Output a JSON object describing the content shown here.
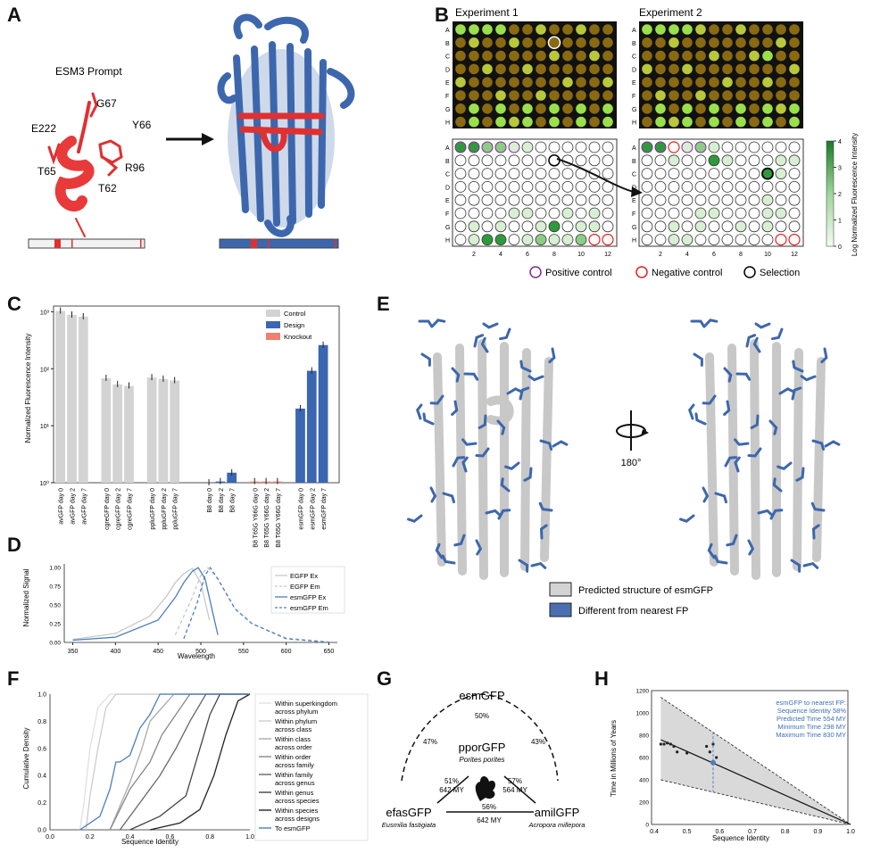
{
  "labels": {
    "A": "A",
    "B": "B",
    "C": "C",
    "D": "D",
    "E": "E",
    "F": "F",
    "G": "G",
    "H": "H"
  },
  "panelA": {
    "title": "ESM3 Prompt",
    "residues": [
      "G67",
      "E222",
      "Y66",
      "T65",
      "R96",
      "T62"
    ]
  },
  "panelB": {
    "exp1": "Experiment 1",
    "exp2": "Experiment 2",
    "rows": [
      "A",
      "B",
      "C",
      "D",
      "E",
      "F",
      "G",
      "H"
    ],
    "cols": [
      "2",
      "4",
      "6",
      "8",
      "10",
      "12"
    ],
    "colorbar_label": "Log Normalized Fluorescence Intensity",
    "colorbar_ticks": [
      "0",
      "1",
      "2",
      "3",
      "4"
    ],
    "legend": [
      "Positive control",
      "Negative control",
      "Selection"
    ],
    "colors": {
      "positive": "#7b2d8e",
      "negative": "#e02020",
      "selection": "#000000"
    }
  },
  "panelC": {
    "chart_data": {
      "type": "bar",
      "ylabel": "Normalized Fluorescence Intensity",
      "yscale": "log",
      "ylim": [
        1,
        1000
      ],
      "yticks": [
        "10⁰",
        "10¹",
        "10²",
        "10³"
      ],
      "legend": [
        "Control",
        "Design",
        "Knockout"
      ],
      "colors": {
        "Control": "#d3d3d3",
        "Design": "#3b66b1",
        "Knockout": "#f08070"
      },
      "categories": [
        "avGFP day 0",
        "avGFP day 2",
        "avGFP day 7",
        "",
        "cgreGFP day 0",
        "cgreGFP day 2",
        "cgreGFP day 7",
        "",
        "ppluGFP day 0",
        "ppluGFP day 2",
        "ppluGFP day 7",
        "",
        "",
        "B8 day 0",
        "B8 day 2",
        "B8 day 7",
        "",
        "B8 T65G Y66G day 0",
        "B8 T65G Y66G day 2",
        "B8 T65G Y66G day 7",
        "",
        "esmGFP day 0",
        "esmGFP day 2",
        "esmGFP day 7"
      ],
      "groups": [
        "Control",
        "Control",
        "Control",
        "",
        "Control",
        "Control",
        "Control",
        "",
        "Control",
        "Control",
        "Control",
        "",
        "",
        "Design",
        "Design",
        "Design",
        "",
        "Knockout",
        "Knockout",
        "Knockout",
        "",
        "Design",
        "Design",
        "Design"
      ],
      "values": [
        1030,
        880,
        820,
        null,
        68,
        53,
        50,
        null,
        70,
        66,
        62,
        null,
        null,
        1,
        1.05,
        1.5,
        null,
        1.05,
        1.05,
        1.05,
        null,
        20,
        92,
        260
      ]
    }
  },
  "panelD": {
    "chart_data": {
      "type": "line",
      "xlabel": "Wavelength",
      "ylabel": "Normalized Signal",
      "xticks": [
        "350",
        "400",
        "450",
        "500",
        "550",
        "600",
        "650"
      ],
      "yticks": [
        "0.00",
        "0.25",
        "0.50",
        "0.75",
        "1.00"
      ],
      "xlim": [
        340,
        660
      ],
      "ylim": [
        0,
        1.05
      ],
      "series": [
        {
          "name": "EGFP Ex",
          "color": "#c8c8c8",
          "dash": false,
          "x": [
            350,
            400,
            440,
            460,
            470,
            480,
            490,
            500,
            510
          ],
          "y": [
            0.04,
            0.12,
            0.35,
            0.62,
            0.8,
            0.92,
            0.99,
            0.8,
            0.3
          ]
        },
        {
          "name": "EGFP Em",
          "color": "#c8c8c8",
          "dash": true,
          "x": [
            470,
            490,
            500,
            508,
            520,
            540,
            560,
            600,
            650
          ],
          "y": [
            0.1,
            0.6,
            0.9,
            1.0,
            0.85,
            0.45,
            0.25,
            0.06,
            0.01
          ]
        },
        {
          "name": "esmGFP Ex",
          "color": "#4a7fc0",
          "dash": false,
          "x": [
            350,
            400,
            450,
            470,
            480,
            490,
            497,
            505,
            515,
            520
          ],
          "y": [
            0.03,
            0.07,
            0.3,
            0.6,
            0.8,
            0.95,
            1.0,
            0.85,
            0.35,
            0.1
          ]
        },
        {
          "name": "esmGFP Em",
          "color": "#4a7fc0",
          "dash": true,
          "x": [
            480,
            495,
            505,
            511,
            520,
            540,
            560,
            600,
            650
          ],
          "y": [
            0.05,
            0.5,
            0.9,
            1.0,
            0.85,
            0.45,
            0.25,
            0.05,
            0.0
          ]
        }
      ]
    }
  },
  "panelE": {
    "rotation": "180°",
    "legend": [
      "Predicted structure of esmGFP",
      "Different from nearest FP"
    ]
  },
  "panelF": {
    "chart_data": {
      "type": "line",
      "xlabel": "Sequence Identity",
      "ylabel": "Cumulative Density",
      "xticks": [
        "0.0",
        "0.2",
        "0.4",
        "0.6",
        "0.8",
        "1.0"
      ],
      "yticks": [
        "0.0",
        "0.2",
        "0.4",
        "0.6",
        "0.8",
        "1.0"
      ],
      "xlim": [
        0,
        1
      ],
      "ylim": [
        0,
        1
      ],
      "series": [
        {
          "name": "Within superkingdom across phylum",
          "color": "#e0e0e0",
          "x": [
            0.15,
            0.17,
            0.2,
            0.24,
            0.3,
            1.0
          ],
          "y": [
            0,
            0.2,
            0.6,
            0.9,
            1.0,
            1.0
          ]
        },
        {
          "name": "Within phylum across class",
          "color": "#cccccc",
          "x": [
            0.18,
            0.2,
            0.24,
            0.28,
            0.33,
            1.0
          ],
          "y": [
            0,
            0.25,
            0.6,
            0.9,
            1.0,
            1.0
          ]
        },
        {
          "name": "Within class across order",
          "color": "#aaaaaa",
          "x": [
            0.3,
            0.4,
            0.46,
            0.5,
            0.56,
            0.62,
            1.0
          ],
          "y": [
            0,
            0.35,
            0.6,
            0.8,
            0.9,
            1.0,
            1.0
          ]
        },
        {
          "name": "Within order across family",
          "color": "#888888",
          "x": [
            0.3,
            0.4,
            0.5,
            0.56,
            0.63,
            0.7,
            1.0
          ],
          "y": [
            0,
            0.3,
            0.5,
            0.7,
            0.85,
            1.0,
            1.0
          ]
        },
        {
          "name": "Within family across genus",
          "color": "#666666",
          "x": [
            0.35,
            0.45,
            0.55,
            0.63,
            0.7,
            0.78,
            1.0
          ],
          "y": [
            0,
            0.2,
            0.4,
            0.6,
            0.8,
            1.0,
            1.0
          ]
        },
        {
          "name": "Within genus across species",
          "color": "#444444",
          "x": [
            0.4,
            0.55,
            0.68,
            0.75,
            0.8,
            0.85,
            1.0
          ],
          "y": [
            0,
            0.1,
            0.25,
            0.6,
            0.85,
            1.0,
            1.0
          ]
        },
        {
          "name": "Within species across designs",
          "color": "#222222",
          "x": [
            0.5,
            0.65,
            0.75,
            0.82,
            0.88,
            0.94,
            1.0
          ],
          "y": [
            0,
            0.05,
            0.15,
            0.4,
            0.7,
            0.95,
            1.0
          ]
        },
        {
          "name": "To esmGFP",
          "color": "#4a7fc0",
          "x": [
            0.15,
            0.25,
            0.3,
            0.33,
            0.35,
            0.4,
            0.45,
            0.5,
            0.55,
            1.0
          ],
          "y": [
            0,
            0.1,
            0.3,
            0.5,
            0.5,
            0.55,
            0.75,
            0.85,
            1.0,
            1.0
          ]
        }
      ]
    }
  },
  "panelG": {
    "top": "esmGFP",
    "middle": "pporGFP",
    "middle_species": "Porites porites",
    "left": "efasGFP",
    "left_species": "Eusmilia fastigiata",
    "right": "amilGFP",
    "right_species": "Acropora millepora",
    "p_top_mid": "50%",
    "p_left_top": "47%",
    "p_right_top": "43%",
    "p_mid_left": "51%",
    "p_mid_left_my": "642 MY",
    "p_mid_right": "57%",
    "p_mid_right_my": "564 MY",
    "p_left_right": "56%",
    "p_left_right_my": "642 MY"
  },
  "panelH": {
    "chart_data": {
      "type": "scatter",
      "xlabel": "Sequence Identity",
      "ylabel": "Time in Millions of Years",
      "xticks": [
        "0.4",
        "0.5",
        "0.6",
        "0.7",
        "0.8",
        "0.9",
        "1.0"
      ],
      "yticks": [
        "0",
        "200",
        "400",
        "600",
        "800",
        "1000",
        "1200"
      ],
      "xlim": [
        0.4,
        1.0
      ],
      "ylim": [
        0,
        1200
      ],
      "points_x": [
        0.42,
        0.43,
        0.44,
        0.45,
        0.46,
        0.47,
        0.5,
        0.56,
        0.57,
        0.58,
        0.59
      ],
      "points_y": [
        720,
        720,
        730,
        720,
        700,
        650,
        640,
        700,
        650,
        720,
        600
      ],
      "fit_line": [
        [
          0.42,
          760
        ],
        [
          1.0,
          0
        ]
      ],
      "ci_upper": [
        [
          0.42,
          1140
        ],
        [
          1.0,
          0
        ]
      ],
      "ci_lower": [
        [
          0.42,
          400
        ],
        [
          1.0,
          0
        ]
      ],
      "esmGFP_point": [
        0.58,
        554
      ],
      "annotation": [
        "esmGFP to nearest FP:",
        "Sequence Identity 58%",
        "Predicted Time 554 MY",
        "Minimum Time 298 MY",
        "Maximum Time 830 MY"
      ]
    }
  }
}
